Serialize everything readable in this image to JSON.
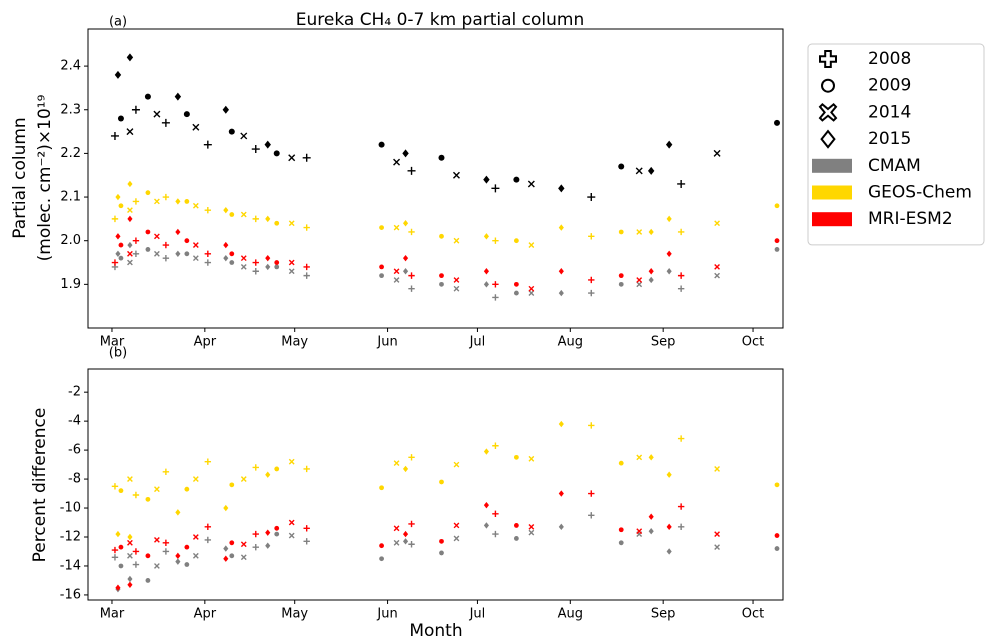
{
  "chart_data": [
    {
      "type": "scatter",
      "panel_label": "(a)",
      "title": "Eureka CH₄ 0-7 km partial column",
      "ylabel": [
        "Partial column",
        "(molec. cm⁻²)×10¹⁹"
      ],
      "xlim": [
        52,
        284
      ],
      "xticks": [
        {
          "value": 60,
          "label": "Mar"
        },
        {
          "value": 91,
          "label": "Apr"
        },
        {
          "value": 121,
          "label": "May"
        },
        {
          "value": 152,
          "label": "Jun"
        },
        {
          "value": 182,
          "label": "Jul"
        },
        {
          "value": 213,
          "label": "Aug"
        },
        {
          "value": 244,
          "label": "Sep"
        },
        {
          "value": 274,
          "label": "Oct"
        }
      ],
      "ylim": [
        1.8,
        2.485
      ],
      "yticks": [
        1.9,
        {
          "value": 2,
          "label": "2.0"
        },
        2.1,
        2.2,
        2.3,
        2.4
      ],
      "years": [
        {
          "name": "2008",
          "marker": "plus",
          "x": [
            61,
            68,
            78,
            92,
            108,
            125,
            160,
            188,
            220,
            250
          ]
        },
        {
          "name": "2009",
          "marker": "circle",
          "x": [
            63,
            72,
            85,
            100,
            115,
            150,
            170,
            195,
            230,
            282
          ]
        },
        {
          "name": "2014",
          "marker": "x",
          "x": [
            66,
            75,
            88,
            104,
            120,
            155,
            175,
            200,
            236,
            262
          ]
        },
        {
          "name": "2015",
          "marker": "diamond",
          "x": [
            62,
            66,
            82,
            98,
            112,
            158,
            185,
            210,
            240,
            246
          ]
        }
      ],
      "series": [
        {
          "name": "CMAM",
          "color": "#808080",
          "values": [
            [
              1.94,
              1.97,
              1.96,
              1.95,
              1.93,
              1.92,
              1.89,
              1.87,
              1.88,
              1.89
            ],
            [
              1.96,
              1.98,
              1.97,
              1.95,
              1.94,
              1.92,
              1.9,
              1.88,
              1.9,
              1.98
            ],
            [
              1.95,
              1.97,
              1.96,
              1.94,
              1.93,
              1.91,
              1.89,
              1.88,
              1.9,
              1.92
            ],
            [
              1.97,
              1.99,
              1.97,
              1.96,
              1.94,
              1.93,
              1.9,
              1.88,
              1.91,
              1.93
            ]
          ]
        },
        {
          "name": "GEOS-Chem",
          "color": "#ffd700",
          "values": [
            [
              2.05,
              2.09,
              2.1,
              2.07,
              2.05,
              2.03,
              2.02,
              2.0,
              2.01,
              2.02
            ],
            [
              2.08,
              2.11,
              2.09,
              2.06,
              2.04,
              2.03,
              2.01,
              2.0,
              2.02,
              2.08
            ],
            [
              2.07,
              2.09,
              2.08,
              2.06,
              2.04,
              2.03,
              2.0,
              1.99,
              2.02,
              2.04
            ],
            [
              2.1,
              2.13,
              2.09,
              2.07,
              2.05,
              2.04,
              2.01,
              2.03,
              2.02,
              2.05
            ]
          ]
        },
        {
          "name": "MRI-ESM2",
          "color": "#ff0000",
          "values": [
            [
              1.95,
              2.0,
              1.99,
              1.97,
              1.95,
              1.94,
              1.92,
              1.9,
              1.91,
              1.92
            ],
            [
              1.99,
              2.02,
              2.0,
              1.97,
              1.95,
              1.94,
              1.92,
              1.9,
              1.92,
              2.0
            ],
            [
              1.97,
              2.01,
              1.99,
              1.96,
              1.95,
              1.93,
              1.91,
              1.89,
              1.91,
              1.94
            ],
            [
              2.01,
              2.05,
              2.02,
              1.99,
              1.96,
              1.96,
              1.93,
              1.93,
              1.93,
              1.97
            ]
          ]
        },
        {
          "color": "#000000",
          "values": [
            [
              2.24,
              2.3,
              2.27,
              2.22,
              2.21,
              2.19,
              2.16,
              2.12,
              2.1,
              2.13
            ],
            [
              2.28,
              2.33,
              2.29,
              2.25,
              2.2,
              2.22,
              2.19,
              2.14,
              2.17,
              2.27
            ],
            [
              2.25,
              2.29,
              2.26,
              2.24,
              2.19,
              2.18,
              2.15,
              2.13,
              2.16,
              2.2
            ],
            [
              2.38,
              2.42,
              2.33,
              2.3,
              2.22,
              2.2,
              2.14,
              2.12,
              2.16,
              2.22
            ]
          ]
        }
      ],
      "legend": "outside upper right"
    },
    {
      "type": "scatter",
      "panel_label": "(b)",
      "ylabel": [
        "Percent difference"
      ],
      "xlabel": "Month",
      "xlim": [
        52,
        284
      ],
      "xticks": [
        {
          "value": 60,
          "label": "Mar"
        },
        {
          "value": 91,
          "label": "Apr"
        },
        {
          "value": 121,
          "label": "May"
        },
        {
          "value": 152,
          "label": "Jun"
        },
        {
          "value": 182,
          "label": "Jul"
        },
        {
          "value": 213,
          "label": "Aug"
        },
        {
          "value": 244,
          "label": "Sep"
        },
        {
          "value": 274,
          "label": "Oct"
        }
      ],
      "ylim": [
        -16.35,
        -0.4
      ],
      "yticks": [
        -16,
        -14,
        -12,
        -10,
        -8,
        -6,
        -4,
        -2
      ],
      "years": [
        {
          "marker": "plus",
          "x": [
            61,
            68,
            78,
            92,
            108,
            125,
            160,
            188,
            220,
            250
          ]
        },
        {
          "marker": "circle",
          "x": [
            63,
            72,
            85,
            100,
            115,
            150,
            170,
            195,
            230,
            282
          ]
        },
        {
          "marker": "x",
          "x": [
            66,
            75,
            88,
            104,
            120,
            155,
            175,
            200,
            236,
            262
          ]
        },
        {
          "marker": "diamond",
          "x": [
            62,
            66,
            82,
            98,
            112,
            158,
            185,
            210,
            240,
            246
          ]
        }
      ],
      "series": [
        {
          "color": "#808080",
          "values": [
            [
              -13.4,
              -13.9,
              -13.0,
              -12.2,
              -12.7,
              -12.3,
              -12.5,
              -11.8,
              -10.5,
              -11.3
            ],
            [
              -14.0,
              -15.0,
              -13.9,
              -13.3,
              -11.8,
              -13.5,
              -13.1,
              -12.1,
              -12.4,
              -12.8
            ],
            [
              -13.3,
              -14.0,
              -13.3,
              -13.4,
              -11.9,
              -12.4,
              -12.1,
              -11.7,
              -11.8,
              -12.7
            ],
            [
              -15.6,
              -14.9,
              -13.7,
              -12.8,
              -12.6,
              -12.3,
              -11.2,
              -11.3,
              -11.6,
              -13.0
            ]
          ]
        },
        {
          "color": "#ffd700",
          "values": [
            [
              -8.5,
              -9.1,
              -7.5,
              -6.8,
              -7.2,
              -7.3,
              -6.5,
              -5.7,
              -4.3,
              -5.2
            ],
            [
              -8.8,
              -9.4,
              -8.7,
              -8.4,
              -7.3,
              -8.6,
              -8.2,
              -6.5,
              -6.9,
              -8.4
            ],
            [
              -8.0,
              -8.7,
              -8.0,
              -8.0,
              -6.8,
              -6.9,
              -7.0,
              -6.6,
              -6.5,
              -7.3
            ],
            [
              -11.8,
              -12.0,
              -10.3,
              -10.0,
              -7.7,
              -7.3,
              -6.1,
              -4.2,
              -6.5,
              -7.7
            ]
          ]
        },
        {
          "color": "#ff0000",
          "values": [
            [
              -12.9,
              -13.0,
              -12.4,
              -11.3,
              -11.8,
              -11.4,
              -11.1,
              -10.4,
              -9.0,
              -9.9
            ],
            [
              -12.7,
              -13.3,
              -12.7,
              -12.4,
              -11.4,
              -12.6,
              -12.3,
              -11.2,
              -11.5,
              -11.9
            ],
            [
              -12.4,
              -12.2,
              -12.0,
              -12.5,
              -11.0,
              -11.4,
              -11.2,
              -11.3,
              -11.6,
              -11.8
            ],
            [
              -15.5,
              -15.3,
              -13.3,
              -13.5,
              -11.7,
              -11.8,
              -9.8,
              -9.0,
              -10.6,
              -11.3
            ]
          ]
        }
      ]
    }
  ]
}
